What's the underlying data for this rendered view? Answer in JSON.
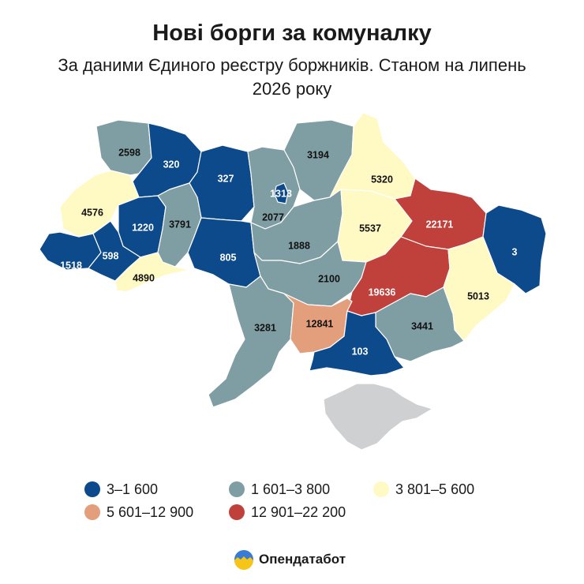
{
  "title": "Нові борги за комуналку",
  "subtitle": "За даними Єдиного реєстру боржників. Станом на липень 2026 року",
  "legend": [
    {
      "label": "3–1 600",
      "color": "#0d4a8c"
    },
    {
      "label": "1 601–3 800",
      "color": "#7f9ea3"
    },
    {
      "label": "3 801–5 600",
      "color": "#fff9c4"
    },
    {
      "label": "5 601–12 900",
      "color": "#e39e7b"
    },
    {
      "label": "12 901–22 200",
      "color": "#c0413c"
    }
  ],
  "no_data_color": "#cfd0d2",
  "regions": [
    {
      "id": "volyn",
      "value": "2598",
      "bin": 1
    },
    {
      "id": "rivne",
      "value": "320",
      "bin": 0
    },
    {
      "id": "zhytomyr",
      "value": "327",
      "bin": 0
    },
    {
      "id": "kyiv-oblast",
      "value": "2077",
      "bin": 1
    },
    {
      "id": "kyiv-city",
      "value": "1313",
      "bin": 0
    },
    {
      "id": "chernihiv",
      "value": "3194",
      "bin": 1
    },
    {
      "id": "sumy",
      "value": "5320",
      "bin": 2
    },
    {
      "id": "lviv",
      "value": "4576",
      "bin": 2
    },
    {
      "id": "ternopil",
      "value": "1220",
      "bin": 0
    },
    {
      "id": "khmelnytskyi",
      "value": "3791",
      "bin": 1
    },
    {
      "id": "vinnytsia",
      "value": "805",
      "bin": 0
    },
    {
      "id": "cherkasy",
      "value": "1888",
      "bin": 1
    },
    {
      "id": "poltava",
      "value": "5537",
      "bin": 2
    },
    {
      "id": "kharkiv",
      "value": "22171",
      "bin": 4
    },
    {
      "id": "luhansk",
      "value": "3",
      "bin": 0
    },
    {
      "id": "zakarpattia",
      "value": "1518",
      "bin": 0
    },
    {
      "id": "ivano-frankivsk",
      "value": "598",
      "bin": 0
    },
    {
      "id": "chernivtsi",
      "value": "4890",
      "bin": 2
    },
    {
      "id": "kirovohrad",
      "value": "2100",
      "bin": 1
    },
    {
      "id": "dnipro",
      "value": "19636",
      "bin": 4
    },
    {
      "id": "donetsk",
      "value": "5013",
      "bin": 2
    },
    {
      "id": "odesa",
      "value": "3281",
      "bin": 1
    },
    {
      "id": "mykolaiv",
      "value": "12841",
      "bin": 3
    },
    {
      "id": "zaporizhzhia",
      "value": "3441",
      "bin": 1
    },
    {
      "id": "kherson",
      "value": "103",
      "bin": 0
    },
    {
      "id": "crimea",
      "value": "",
      "bin": -1
    }
  ],
  "brand": {
    "name": "Опендатабот",
    "logo_colors": [
      "#3a7bd5",
      "#f5c518"
    ]
  }
}
